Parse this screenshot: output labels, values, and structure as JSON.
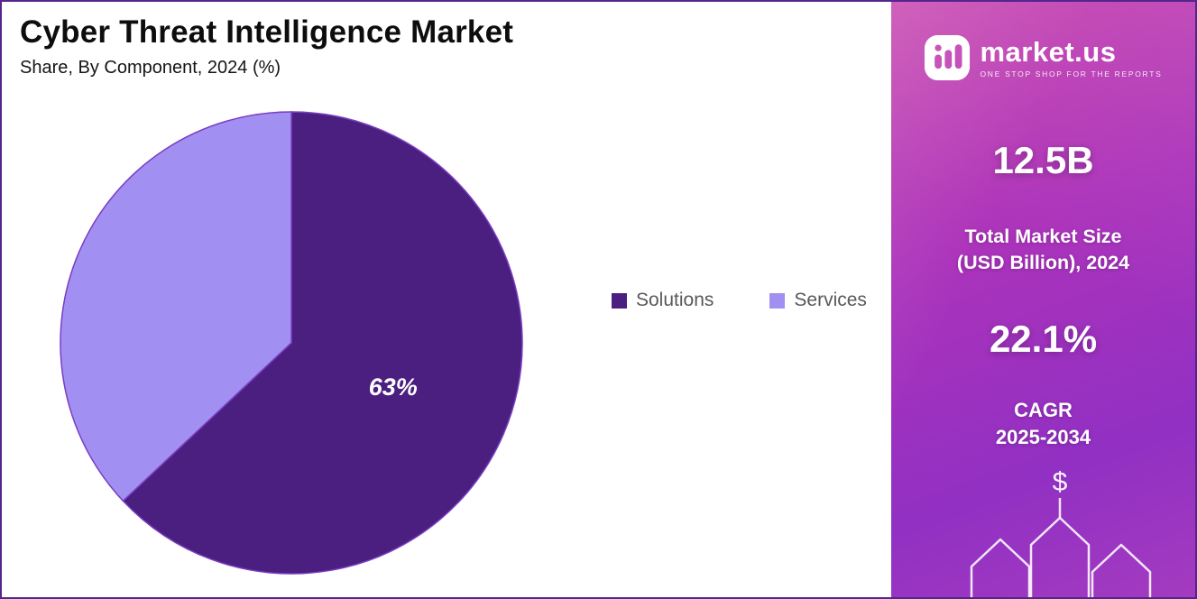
{
  "chart_data": {
    "type": "pie",
    "title": "Cyber Threat Intelligence Market",
    "subtitle": "Share, By Component, 2024 (%)",
    "categories": [
      "Solutions",
      "Services"
    ],
    "values": [
      63,
      37
    ],
    "slice_labels": [
      "63%",
      ""
    ],
    "colors": [
      "#4b1f80",
      "#a28ff2"
    ],
    "stroke_color": "#7a3ec2",
    "start_angle_deg": 0,
    "direction": "clockwise",
    "legend_position": "right",
    "legend_text_color": "#595959"
  },
  "side_panel": {
    "logo_text": "market.us",
    "logo_tagline": "ONE STOP SHOP FOR THE REPORTS",
    "market_size_value": "12.5B",
    "market_size_label_line1": "Total Market Size",
    "market_size_label_line2": "(USD Billion), 2024",
    "cagr_value": "22.1%",
    "cagr_label_line1": "CAGR",
    "cagr_label_line2": "2025-2034",
    "dollar_symbol": "$",
    "gradient_top_color": "#c743ae",
    "gradient_bottom_color": "#9130c3"
  }
}
